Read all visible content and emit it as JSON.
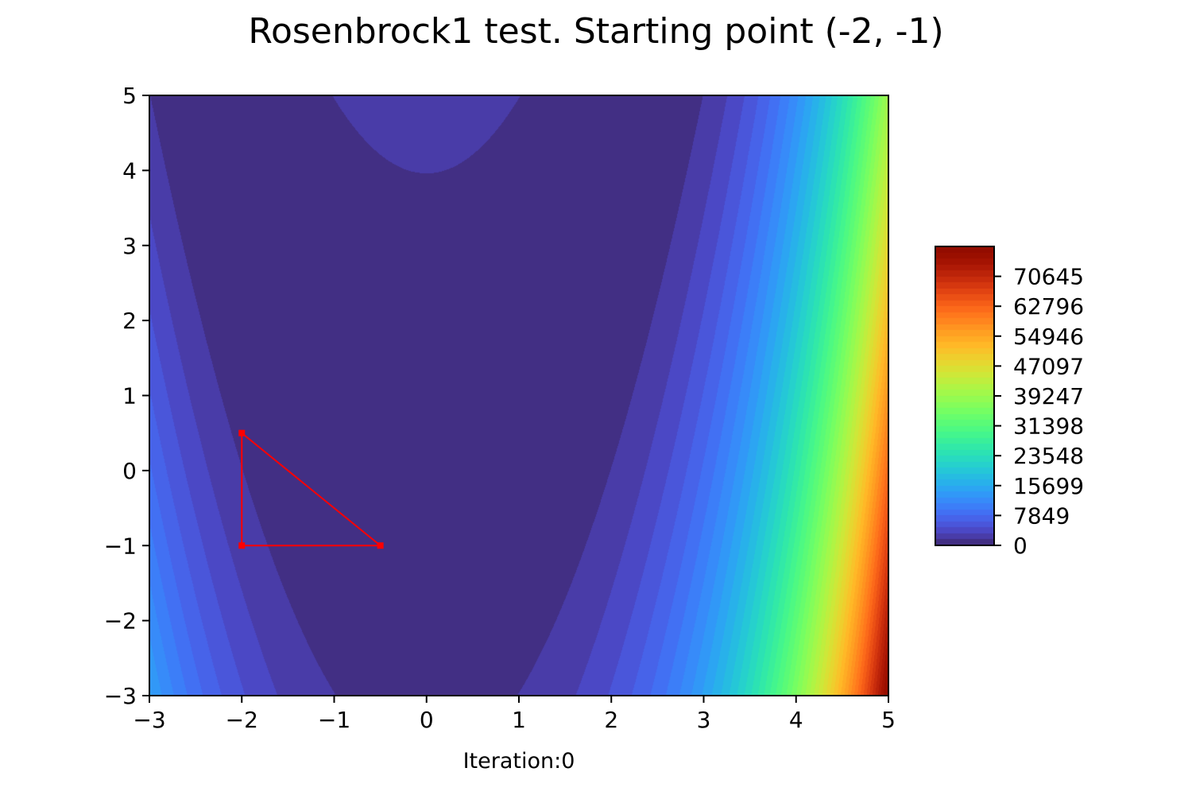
{
  "chart_data": {
    "type": "contour",
    "title": "Rosenbrock1 test. Starting point (-2, -1)",
    "xlabel": "Iteration:0",
    "ylabel": "",
    "xlim": [
      -3,
      5
    ],
    "ylim": [
      -3,
      5
    ],
    "x_ticks": [
      "−3",
      "−2",
      "−1",
      "0",
      "1",
      "2",
      "3",
      "4",
      "5"
    ],
    "x_tick_values": [
      -3,
      -2,
      -1,
      0,
      1,
      2,
      3,
      4,
      5
    ],
    "y_ticks": [
      "−3",
      "−2",
      "−1",
      "0",
      "1",
      "2",
      "3",
      "4",
      "5"
    ],
    "y_tick_values": [
      -3,
      -2,
      -1,
      0,
      1,
      2,
      3,
      4,
      5
    ],
    "colormap": "turbo",
    "colorbar": {
      "min": 0,
      "max": 78494,
      "ticks": [
        0,
        7849,
        15699,
        23548,
        31398,
        39247,
        47097,
        54946,
        62796,
        70645
      ],
      "tick_labels": [
        "0",
        "7849",
        "15699",
        "23548",
        "31398",
        "39247",
        "47097",
        "54946",
        "62796",
        "70645"
      ],
      "levels": 50
    },
    "simplex": {
      "color": "#ff0000",
      "points": [
        {
          "x": -2.0,
          "y": -1.0
        },
        {
          "x": -0.5,
          "y": -1.0
        },
        {
          "x": -2.0,
          "y": 0.5
        }
      ]
    },
    "grid": false
  }
}
